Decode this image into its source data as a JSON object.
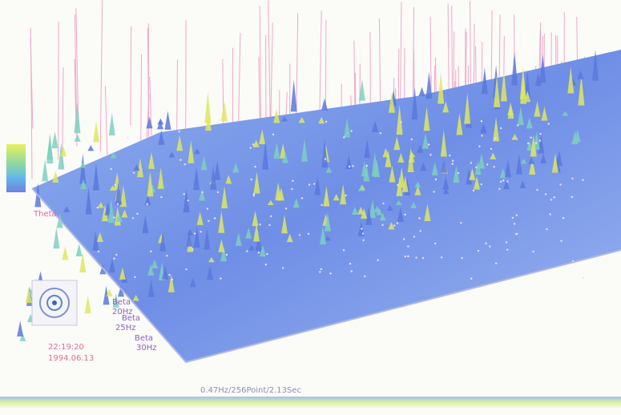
{
  "band_labels": [
    {
      "name": "Beta",
      "freq": "20Hz"
    },
    {
      "name": "Beta",
      "freq": "25Hz"
    },
    {
      "name": "Beta",
      "freq": "30Hz"
    }
  ],
  "axis_label_top": "Theta",
  "time": "22:19:20",
  "date": "1994.06.13",
  "footer": "0.47Hz/256Point/2.13Sec"
}
